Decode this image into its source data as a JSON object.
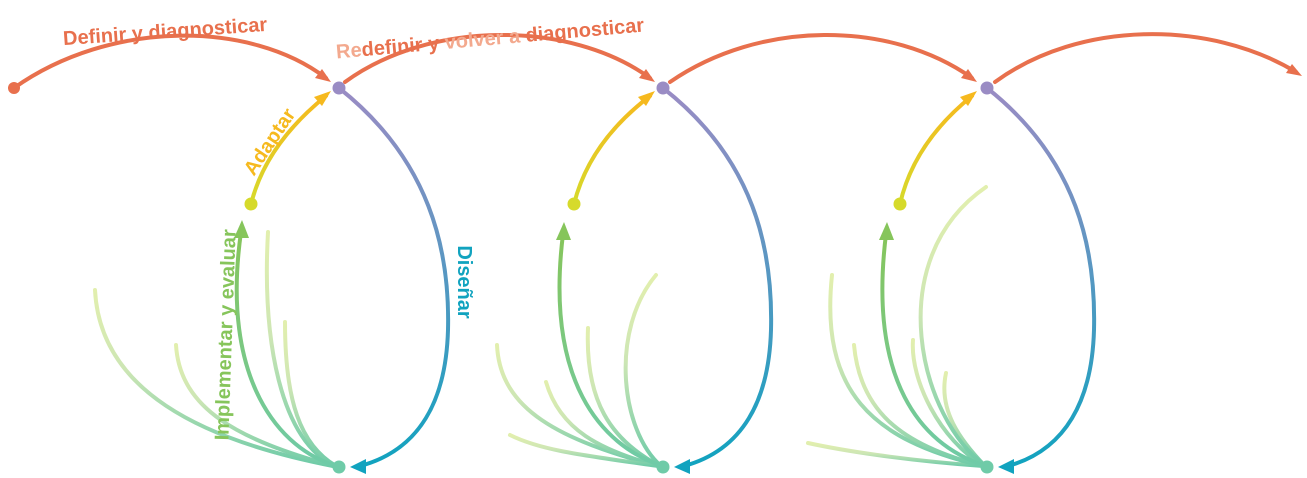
{
  "colors": {
    "define": "#E8704D",
    "define_light": "#F3A98E",
    "adapt": "#F6B91E",
    "adapt_node": "#D6DA2B",
    "design_top": "#9A8CC4",
    "design_bottom": "#11A3BF",
    "implement": "#86C55B",
    "implement_base": "#6FCBA8",
    "faded": "#E2EFAE"
  },
  "labels": {
    "define": "Definir y diagnosticar",
    "redefine_prefix": "Re",
    "redefine_rest": "definir y ",
    "redefine_volver": "volver a",
    "redefine_tail": " diagnosticar",
    "adapt": "Adaptar",
    "design": "Diseñar",
    "implement": "Implementar y evaluar"
  }
}
